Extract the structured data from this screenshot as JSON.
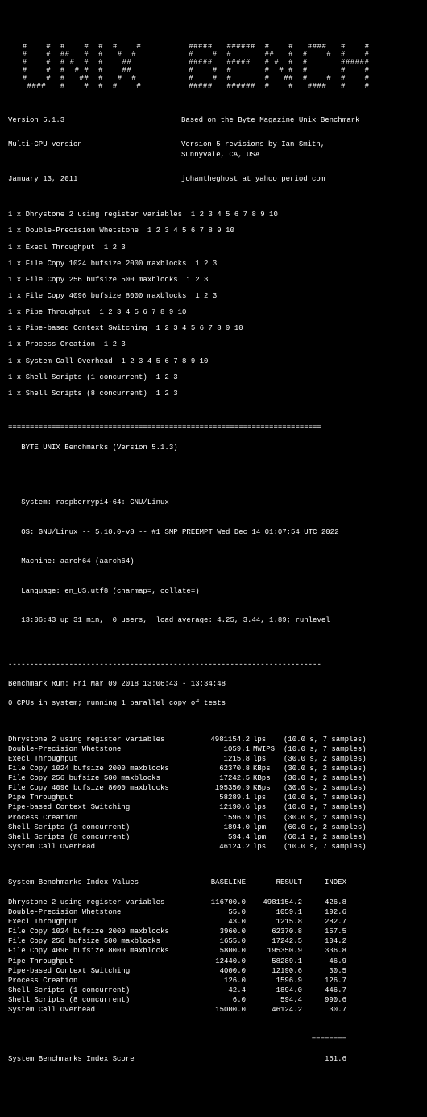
{
  "banner": "   #    #  #    #  #  #    #          #####   ######  #    #   ####   #    #\n   #    #  ##   #  #   #  #           #    #  #       ##   #  #    #  #    #\n   #    #  # #  #  #    ##            #####   #####   # #  #  #       ######\n   #    #  #  # #  #    ##            #    #  #       #  # #  #       #    #\n   #    #  #   ##  #   #  #           #    #  #       #   ##  #    #  #    #\n    ####   #    #  #  #    #          #####   ######  #    #   ####   #    #",
  "header": {
    "version": "Version 5.1.3",
    "based": "Based on the Byte Magazine Unix Benchmark",
    "multi": "Multi-CPU version",
    "rev": "Version 5 revisions by Ian Smith,\nSunnyvale, CA, USA",
    "date": "January 13, 2011",
    "email": "johantheghost at yahoo period com"
  },
  "progress": [
    "1 x Dhrystone 2 using register variables  1 2 3 4 5 6 7 8 9 10",
    "1 x Double-Precision Whetstone  1 2 3 4 5 6 7 8 9 10",
    "1 x Execl Throughput  1 2 3",
    "1 x File Copy 1024 bufsize 2000 maxblocks  1 2 3",
    "1 x File Copy 256 bufsize 500 maxblocks  1 2 3",
    "1 x File Copy 4096 bufsize 8000 maxblocks  1 2 3",
    "1 x Pipe Throughput  1 2 3 4 5 6 7 8 9 10",
    "1 x Pipe-based Context Switching  1 2 3 4 5 6 7 8 9 10",
    "1 x Process Creation  1 2 3",
    "1 x System Call Overhead  1 2 3 4 5 6 7 8 9 10",
    "1 x Shell Scripts (1 concurrent)  1 2 3",
    "1 x Shell Scripts (8 concurrent)  1 2 3"
  ],
  "sep1": "========================================================================",
  "title": "   BYTE UNIX Benchmarks (Version 5.1.3)",
  "sys": {
    "l1": "   System: raspberrypi4-64: GNU/Linux",
    "l2": "   OS: GNU/Linux -- 5.10.0-v8 -- #1 SMP PREEMPT Wed Dec 14 01:07:54 UTC 2022",
    "l3": "   Machine: aarch64 (aarch64)",
    "l4": "   Language: en_US.utf8 (charmap=, collate=)",
    "l5": "   13:06:43 up 31 min,  0 users,  load average: 4.25, 3.44, 1.89; runlevel"
  },
  "sep2": "------------------------------------------------------------------------",
  "run": {
    "l1": "Benchmark Run: Fri Mar 09 2018 13:06:43 - 13:34:48",
    "l2": "0 CPUs in system; running 1 parallel copy of tests"
  },
  "results": [
    {
      "name": "Dhrystone 2 using register variables",
      "val": "4981154.2",
      "unit": "lps",
      "det": "(10.0 s, 7 samples)"
    },
    {
      "name": "Double-Precision Whetstone",
      "val": "1059.1",
      "unit": "MWIPS",
      "det": "(10.0 s, 7 samples)"
    },
    {
      "name": "Execl Throughput",
      "val": "1215.8",
      "unit": "lps",
      "det": "(30.0 s, 2 samples)"
    },
    {
      "name": "File Copy 1024 bufsize 2000 maxblocks",
      "val": "62370.8",
      "unit": "KBps",
      "det": "(30.0 s, 2 samples)"
    },
    {
      "name": "File Copy 256 bufsize 500 maxblocks",
      "val": "17242.5",
      "unit": "KBps",
      "det": "(30.0 s, 2 samples)"
    },
    {
      "name": "File Copy 4096 bufsize 8000 maxblocks",
      "val": "195350.9",
      "unit": "KBps",
      "det": "(30.0 s, 2 samples)"
    },
    {
      "name": "Pipe Throughput",
      "val": "58289.1",
      "unit": "lps",
      "det": "(10.0 s, 7 samples)"
    },
    {
      "name": "Pipe-based Context Switching",
      "val": "12190.6",
      "unit": "lps",
      "det": "(10.0 s, 7 samples)"
    },
    {
      "name": "Process Creation",
      "val": "1596.9",
      "unit": "lps",
      "det": "(30.0 s, 2 samples)"
    },
    {
      "name": "Shell Scripts (1 concurrent)",
      "val": "1894.0",
      "unit": "lpm",
      "det": "(60.0 s, 2 samples)"
    },
    {
      "name": "Shell Scripts (8 concurrent)",
      "val": "594.4",
      "unit": "lpm",
      "det": "(60.1 s, 2 samples)"
    },
    {
      "name": "System Call Overhead",
      "val": "46124.2",
      "unit": "lps",
      "det": "(10.0 s, 7 samples)"
    }
  ],
  "idx_header": {
    "title": "System Benchmarks Index Values",
    "base": "BASELINE",
    "res": "RESULT",
    "idx": "INDEX"
  },
  "index": [
    {
      "name": "Dhrystone 2 using register variables",
      "base": "116700.0",
      "res": "4981154.2",
      "idx": "426.8"
    },
    {
      "name": "Double-Precision Whetstone",
      "base": "55.0",
      "res": "1059.1",
      "idx": "192.6"
    },
    {
      "name": "Execl Throughput",
      "base": "43.0",
      "res": "1215.8",
      "idx": "282.7"
    },
    {
      "name": "File Copy 1024 bufsize 2000 maxblocks",
      "base": "3960.0",
      "res": "62370.8",
      "idx": "157.5"
    },
    {
      "name": "File Copy 256 bufsize 500 maxblocks",
      "base": "1655.0",
      "res": "17242.5",
      "idx": "104.2"
    },
    {
      "name": "File Copy 4096 bufsize 8000 maxblocks",
      "base": "5800.0",
      "res": "195350.9",
      "idx": "336.8"
    },
    {
      "name": "Pipe Throughput",
      "base": "12440.0",
      "res": "58289.1",
      "idx": "46.9"
    },
    {
      "name": "Pipe-based Context Switching",
      "base": "4000.0",
      "res": "12190.6",
      "idx": "30.5"
    },
    {
      "name": "Process Creation",
      "base": "126.0",
      "res": "1596.9",
      "idx": "126.7"
    },
    {
      "name": "Shell Scripts (1 concurrent)",
      "base": "42.4",
      "res": "1894.0",
      "idx": "446.7"
    },
    {
      "name": "Shell Scripts (8 concurrent)",
      "base": "6.0",
      "res": "594.4",
      "idx": "990.6"
    },
    {
      "name": "System Call Overhead",
      "base": "15000.0",
      "res": "46124.2",
      "idx": "30.7"
    }
  ],
  "score_sep": "========",
  "score": {
    "label": "System Benchmarks Index Score",
    "val": "161.6"
  }
}
